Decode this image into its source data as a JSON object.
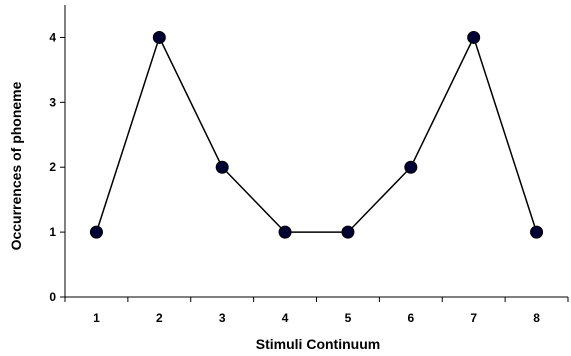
{
  "chart_data": {
    "type": "line",
    "title": "",
    "xlabel": "Stimuli Continuum",
    "ylabel": "Occurrences of phoneme",
    "x": [
      1,
      2,
      3,
      4,
      5,
      6,
      7,
      8
    ],
    "xticks": [
      "1",
      "2",
      "3",
      "4",
      "5",
      "6",
      "7",
      "8"
    ],
    "yticks": [
      "0",
      "1",
      "2",
      "3",
      "4"
    ],
    "ylim": [
      0,
      4.5
    ],
    "grid": false,
    "legend": "none",
    "series": [
      {
        "values": [
          1,
          4,
          2,
          1,
          1,
          2,
          4,
          1
        ],
        "line_color": "#000000",
        "marker_color": "#000033"
      }
    ]
  }
}
